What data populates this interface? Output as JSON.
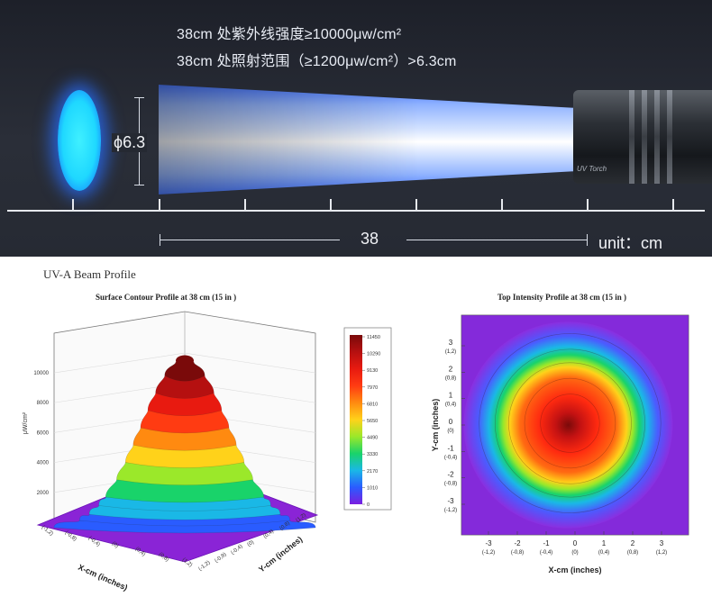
{
  "banner": {
    "spec_line_1": "38cm 处紫外线强度≥10000μw/cm²",
    "spec_line_2": "38cm 处照射范围（≥1200μw/cm²）>6.3cm",
    "spot_diameter_label": "ϕ6.3",
    "distance_label": "38",
    "unit_label": "unit：cm",
    "torch_label": "UV Torch",
    "spot_color": "#2fe4ff",
    "beam_color": "#6f9bff"
  },
  "profile_title": "UV-A Beam Profile",
  "chart_data": [
    {
      "type": "surface",
      "title": "Surface Contour Profile at 38 cm (15 in )",
      "zlabel": "μW/cm²",
      "xlabel": "X-cm (inches)",
      "ylabel": "Y-cm (inches)",
      "z_ticks": [
        "2000",
        "4000",
        "6000",
        "8000",
        "10000"
      ],
      "x_ticks": [
        "(-1,2)",
        "(-0,8)",
        "(-0,4)",
        "(0)",
        "(0,4)",
        "(0,8)",
        "(1,2)"
      ],
      "y_ticks": [
        "(1,2)",
        "(0,8)",
        "(0,4)",
        "(0)",
        "(-0,4)",
        "(-0,8)",
        "(-1,2)"
      ],
      "peak": 11450,
      "colorbar": {
        "labels": [
          "11450",
          "10290",
          "9130",
          "7970",
          "6810",
          "5650",
          "4490",
          "3330",
          "2170",
          "1010",
          "0"
        ],
        "colors": [
          "#7a0a0a",
          "#b51010",
          "#e81a10",
          "#ff3b12",
          "#ff8a10",
          "#ffd21a",
          "#9be82a",
          "#19d36a",
          "#1ab8e6",
          "#2a5cff",
          "#7a1ee0"
        ]
      }
    },
    {
      "type": "heatmap",
      "title": "Top Intensity Profile at 38 cm (15 in )",
      "xlabel": "X-cm (inches)",
      "ylabel": "Y-cm (inches)",
      "x_ticks": [
        {
          "main": "-3",
          "sub": "(-1,2)"
        },
        {
          "main": "-2",
          "sub": "(-0,8)"
        },
        {
          "main": "-1",
          "sub": "(-0,4)"
        },
        {
          "main": "0",
          "sub": "(0)"
        },
        {
          "main": "1",
          "sub": "(0,4)"
        },
        {
          "main": "2",
          "sub": "(0,8)"
        },
        {
          "main": "3",
          "sub": "(1,2)"
        }
      ],
      "y_ticks": [
        {
          "main": "3",
          "sub": "(1,2)"
        },
        {
          "main": "2",
          "sub": "(0,8)"
        },
        {
          "main": "1",
          "sub": "(0,4)"
        },
        {
          "main": "0",
          "sub": "(0)"
        },
        {
          "main": "-1",
          "sub": "(-0,4)"
        },
        {
          "main": "-2",
          "sub": "(-0,8)"
        },
        {
          "main": "-3",
          "sub": "(-1,2)"
        }
      ],
      "beam_diameter_cm": 6.3
    }
  ]
}
